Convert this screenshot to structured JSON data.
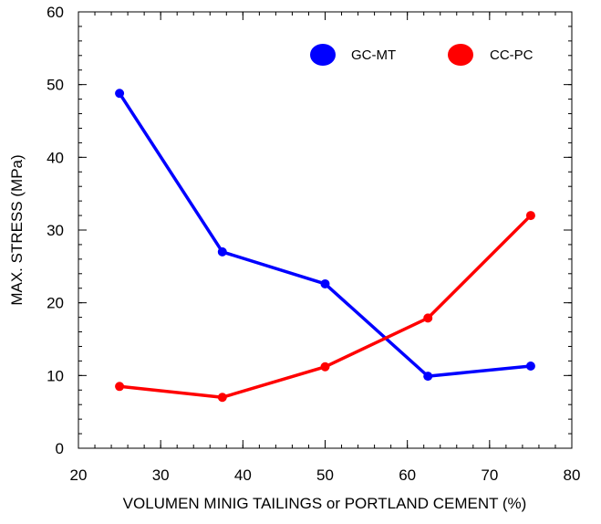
{
  "chart_data": {
    "type": "line",
    "title": "",
    "xlabel": "VOLUMEN MINIG TAILINGS or PORTLAND CEMENT (%)",
    "ylabel": "MAX. STRESS (MPa)",
    "xlim": [
      20,
      80
    ],
    "ylim": [
      0,
      60
    ],
    "xticks": [
      20,
      30,
      40,
      50,
      60,
      70,
      80
    ],
    "yticks": [
      0,
      10,
      20,
      30,
      40,
      50,
      60
    ],
    "grid": false,
    "legend_position": "top-right",
    "series": [
      {
        "name": "GC-MT",
        "color": "#0000ff",
        "x": [
          25,
          37.5,
          50,
          62.5,
          75
        ],
        "y": [
          48.8,
          27.0,
          22.6,
          9.9,
          11.3
        ]
      },
      {
        "name": "CC-PC",
        "color": "#ff0000",
        "x": [
          25,
          37.5,
          50,
          62.5,
          75
        ],
        "y": [
          8.5,
          7.0,
          11.2,
          17.9,
          32.0
        ]
      }
    ]
  }
}
